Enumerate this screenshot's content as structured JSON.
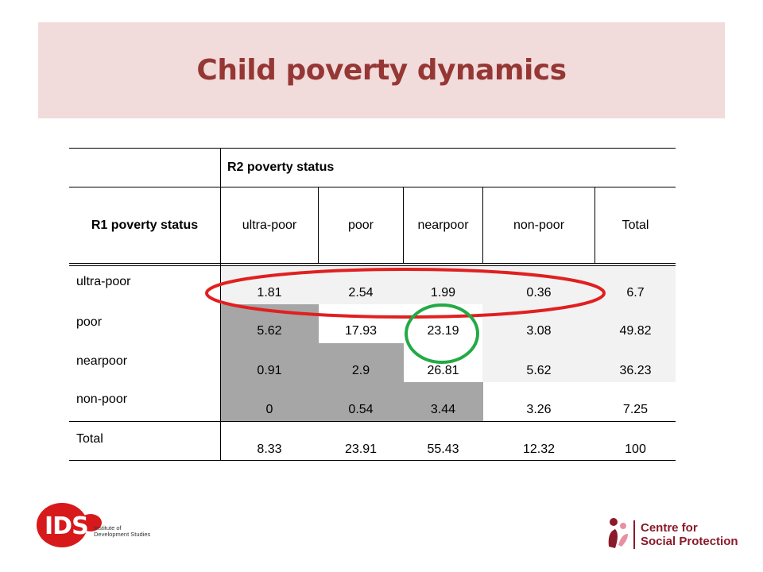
{
  "slide": {
    "title": "Child poverty dynamics"
  },
  "table": {
    "col_group_header": "R2 poverty status",
    "row_header": "R1 poverty status",
    "columns": [
      "ultra-poor",
      "poor",
      "nearpoor",
      "non-poor",
      "Total"
    ],
    "rows": [
      {
        "label": "ultra-poor",
        "values": [
          "1.81",
          "2.54",
          "1.99",
          "0.36",
          "6.7"
        ]
      },
      {
        "label": "poor",
        "values": [
          "5.62",
          "17.93",
          "23.19",
          "3.08",
          "49.82"
        ]
      },
      {
        "label": "nearpoor",
        "values": [
          "0.91",
          "2.9",
          "26.81",
          "5.62",
          "36.23"
        ]
      },
      {
        "label": "non-poor",
        "values": [
          "0",
          "0.54",
          "3.44",
          "3.26",
          "7.25"
        ]
      },
      {
        "label": "Total",
        "values": [
          "8.33",
          "23.91",
          "55.43",
          "12.32",
          "100"
        ]
      }
    ]
  },
  "annotations": {
    "red_ellipse_color": "#e02020",
    "green_circle_color": "#22aa44"
  },
  "logos": {
    "ids_mark": "IDS",
    "ids_text_line1": "Institute of",
    "ids_text_line2": "Development Studies",
    "csp_text_line1": "Centre for",
    "csp_text_line2": "Social Protection"
  }
}
